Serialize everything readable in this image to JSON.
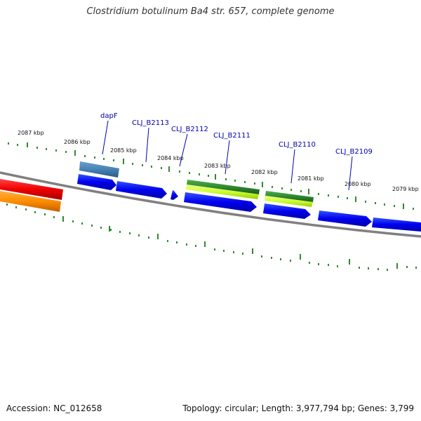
{
  "title": "Clostridium botulinum Ba4 str. 657, complete genome",
  "footer": {
    "accession": "Accession: NC_012658",
    "summary": "Topology: circular; Length: 3,977,794 bp; Genes: 3,799"
  },
  "ruler": {
    "labels": [
      "2087 kbp",
      "2086 kbp",
      "2085 kbp",
      "2084 kbp",
      "2083 kbp",
      "2082 kbp",
      "2081 kbp",
      "2080 kbp",
      "2079 kbp"
    ]
  },
  "gene_labels": [
    "dapF",
    "CLJ_B2113",
    "CLJ_B2112",
    "CLJ_B2111",
    "CLJ_B2110",
    "CLJ_B2109"
  ],
  "colors": {
    "tick": "#2e8b2e",
    "backbone": "#808080",
    "cds": "#0000ee",
    "label": "#0000aa",
    "red_track": "#ee0000",
    "orange_track": "#ff8c00",
    "teal_gene": "#4682b4",
    "green_gene": "#2e8b2e",
    "lime_gene": "#ccff33"
  }
}
